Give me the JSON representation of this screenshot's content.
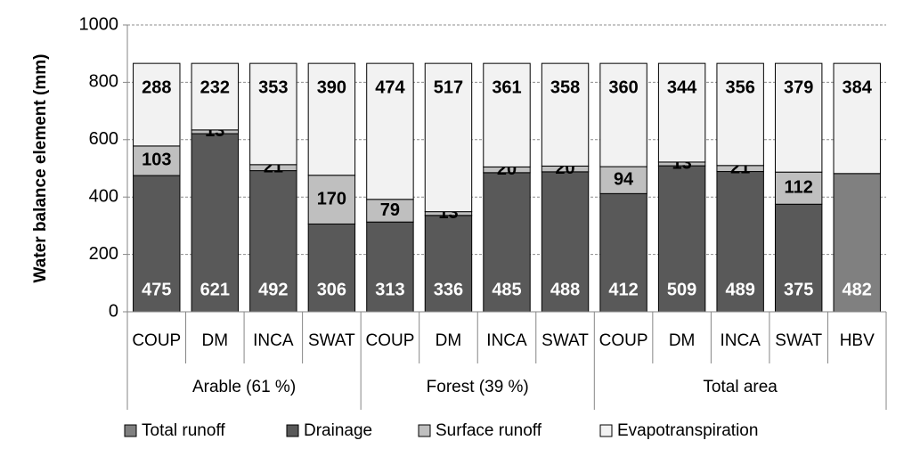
{
  "chart_data": {
    "type": "stacked_bar",
    "y_label": "Water balance element (mm)",
    "groups": [
      {
        "label": "Arable (61 %)",
        "categories": [
          "COUP",
          "DM",
          "INCA",
          "SWAT"
        ]
      },
      {
        "label": "Forest (39 %)",
        "categories": [
          "COUP",
          "DM",
          "INCA",
          "SWAT"
        ]
      },
      {
        "label": "Total area",
        "categories": [
          "COUP",
          "DM",
          "INCA",
          "SWAT",
          "HBV"
        ]
      }
    ],
    "series": [
      {
        "name": "Total runoff",
        "color": "#808080",
        "values": [
          null,
          null,
          null,
          null,
          null,
          null,
          null,
          null,
          null,
          null,
          null,
          null,
          482
        ]
      },
      {
        "name": "Drainage",
        "color": "#595959",
        "values": [
          475,
          621,
          492,
          306,
          313,
          336,
          485,
          488,
          412,
          509,
          489,
          375,
          null
        ]
      },
      {
        "name": "Surface runoff",
        "color": "#bfbfbf",
        "values": [
          103,
          13,
          21,
          170,
          79,
          13,
          20,
          20,
          94,
          13,
          21,
          112,
          null
        ]
      },
      {
        "name": "Evapotranspiration",
        "color": "#f2f2f2",
        "values": [
          288,
          232,
          353,
          390,
          474,
          517,
          361,
          358,
          360,
          344,
          356,
          379,
          384
        ]
      }
    ],
    "ylim": [
      0,
      1000
    ],
    "yticks": [
      0,
      200,
      400,
      600,
      800,
      1000
    ],
    "grid": true
  }
}
